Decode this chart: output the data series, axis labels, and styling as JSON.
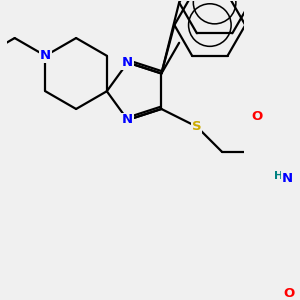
{
  "background_color": "#f0f0f0",
  "atom_colors": {
    "N": "#0000ff",
    "O": "#ff0000",
    "S": "#ccaa00",
    "H": "#008080",
    "C": "#000000"
  },
  "bond_color": "#000000",
  "bond_width": 1.6,
  "font_size_atom": 9.5,
  "font_size_small": 8,
  "title": ""
}
